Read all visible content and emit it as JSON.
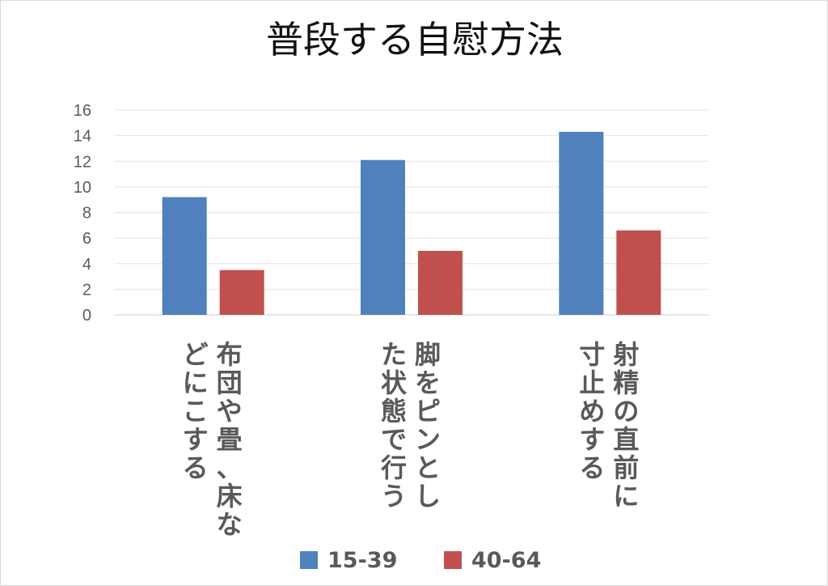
{
  "chart_data": {
    "type": "bar",
    "title": "普段する自慰方法",
    "categories": [
      "布団や畳、床などにこする",
      "脚をピンとした状態で行う",
      "射精の直前に寸止めする"
    ],
    "category_lines": [
      [
        "布団や畳、床な",
        "どにこする"
      ],
      [
        "脚をピンとし",
        "た状態で行う"
      ],
      [
        "射精の直前に",
        "寸止めする"
      ]
    ],
    "series": [
      {
        "name": "15-39",
        "values": [
          9.2,
          12.1,
          14.3
        ],
        "color": "#4f81bd"
      },
      {
        "name": "40-64",
        "values": [
          3.5,
          5.0,
          6.6
        ],
        "color": "#c0504d"
      }
    ],
    "ylim": [
      0,
      16
    ],
    "yticks": [
      "0",
      "2",
      "4",
      "6",
      "8",
      "10",
      "12",
      "14",
      "16"
    ],
    "grid": true,
    "legend_position": "bottom"
  }
}
